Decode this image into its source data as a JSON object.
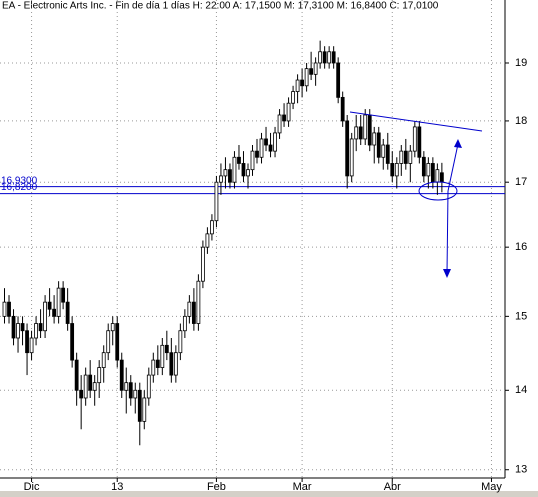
{
  "chart_data": {
    "type": "candlestick",
    "title": "EA - Electronic Arts Inc.  - Fin de día 1 días H: 22:00 A: 17,1500 M: 17,3100 M: 16,8400 C: 17,0100",
    "log_scale": true,
    "grid": true,
    "color": "#000000",
    "ylim": [
      12.9,
      20.15
    ],
    "yticks": [
      13,
      14,
      15,
      16,
      17,
      18,
      19
    ],
    "xlim": [
      -1,
      111
    ],
    "xticks": [
      {
        "value": 6,
        "label": "Dic"
      },
      {
        "value": 25,
        "label": "13"
      },
      {
        "value": 47,
        "label": "Feb"
      },
      {
        "value": 66,
        "label": "Mar"
      },
      {
        "value": 86,
        "label": "Abr"
      },
      {
        "value": 108,
        "label": "May"
      }
    ],
    "x": [
      0,
      1,
      2,
      3,
      4,
      5,
      6,
      7,
      8,
      9,
      10,
      11,
      12,
      13,
      14,
      15,
      16,
      17,
      18,
      19,
      20,
      21,
      22,
      23,
      24,
      25,
      26,
      27,
      28,
      29,
      30,
      31,
      32,
      33,
      34,
      35,
      36,
      37,
      38,
      39,
      40,
      41,
      42,
      43,
      44,
      45,
      46,
      47,
      48,
      49,
      50,
      51,
      52,
      53,
      54,
      55,
      56,
      57,
      58,
      59,
      60,
      61,
      62,
      63,
      64,
      65,
      66,
      67,
      68,
      69,
      70,
      71,
      72,
      73,
      74,
      75,
      76,
      77,
      78,
      79,
      80,
      81,
      82,
      83,
      84,
      85,
      86,
      87,
      88,
      89,
      90,
      91,
      92,
      93,
      94,
      95,
      96,
      97
    ],
    "open": [
      15.0,
      15.2,
      15.0,
      14.7,
      14.9,
      14.8,
      14.5,
      14.7,
      14.9,
      14.8,
      15.2,
      15.1,
      15.0,
      15.4,
      15.2,
      14.9,
      14.4,
      14.0,
      13.9,
      14.2,
      14.0,
      14.1,
      14.3,
      14.5,
      14.8,
      14.9,
      14.4,
      14.0,
      14.1,
      13.9,
      14.0,
      13.6,
      13.9,
      14.2,
      14.4,
      14.3,
      14.6,
      14.5,
      14.2,
      14.5,
      14.8,
      15.0,
      15.2,
      14.9,
      15.5,
      16.0,
      16.2,
      16.4,
      17.0,
      17.1,
      17.2,
      17.0,
      17.4,
      17.3,
      17.1,
      17.2,
      17.5,
      17.4,
      17.7,
      17.6,
      17.5,
      17.8,
      18.1,
      18.0,
      18.3,
      18.5,
      18.7,
      18.6,
      18.9,
      18.8,
      19.0,
      19.2,
      19.0,
      19.2,
      19.0,
      18.4,
      18.0,
      17.1,
      17.7,
      17.9,
      17.7,
      18.1,
      17.6,
      17.8,
      17.4,
      17.6,
      17.3,
      17.1,
      17.3,
      17.5,
      17.3,
      17.5,
      17.9,
      17.4,
      17.1,
      17.3,
      17.0,
      17.15
    ],
    "high": [
      15.4,
      15.3,
      15.1,
      15.0,
      15.0,
      14.9,
      14.8,
      15.0,
      15.1,
      15.3,
      15.4,
      15.3,
      15.5,
      15.5,
      15.4,
      15.0,
      14.5,
      14.2,
      14.3,
      14.4,
      14.2,
      14.4,
      14.6,
      14.9,
      15.0,
      15.0,
      14.5,
      14.3,
      14.2,
      14.1,
      14.1,
      14.0,
      14.3,
      14.5,
      14.6,
      14.7,
      14.8,
      14.7,
      14.6,
      14.9,
      15.1,
      15.3,
      15.4,
      15.6,
      16.1,
      16.3,
      16.5,
      17.1,
      17.3,
      17.4,
      17.3,
      17.5,
      17.6,
      17.5,
      17.3,
      17.6,
      17.7,
      17.8,
      17.9,
      17.8,
      17.9,
      18.2,
      18.3,
      18.4,
      18.6,
      18.8,
      18.9,
      19.0,
      19.2,
      19.1,
      19.4,
      19.3,
      19.3,
      19.3,
      19.1,
      18.5,
      18.1,
      17.8,
      18.1,
      18.1,
      18.2,
      18.2,
      17.9,
      17.9,
      17.7,
      17.8,
      17.5,
      17.4,
      17.6,
      17.7,
      17.6,
      18.0,
      18.0,
      17.5,
      17.4,
      17.4,
      17.3,
      17.31
    ],
    "low": [
      14.9,
      14.9,
      14.6,
      14.5,
      14.6,
      14.2,
      14.4,
      14.6,
      14.7,
      14.7,
      15.0,
      14.9,
      14.9,
      15.1,
      14.8,
      14.3,
      13.8,
      13.5,
      13.8,
      13.9,
      13.8,
      13.9,
      14.1,
      14.4,
      14.6,
      14.3,
      13.9,
      13.7,
      13.8,
      13.7,
      13.3,
      13.5,
      13.8,
      14.1,
      14.2,
      14.2,
      14.4,
      14.1,
      14.1,
      14.4,
      14.7,
      14.9,
      14.8,
      14.8,
      15.4,
      15.9,
      16.1,
      16.3,
      16.8,
      16.9,
      16.9,
      16.9,
      17.2,
      17.0,
      16.9,
      17.1,
      17.3,
      17.3,
      17.5,
      17.4,
      17.4,
      17.7,
      17.9,
      17.9,
      18.2,
      18.3,
      18.4,
      18.5,
      18.7,
      18.6,
      18.9,
      18.9,
      18.9,
      18.9,
      18.3,
      17.9,
      16.9,
      17.0,
      17.5,
      17.6,
      17.6,
      17.5,
      17.3,
      17.3,
      17.2,
      17.2,
      17.0,
      16.9,
      17.1,
      17.2,
      17.0,
      17.4,
      17.3,
      17.0,
      16.9,
      16.9,
      16.8,
      16.84
    ],
    "close": [
      15.2,
      15.0,
      14.7,
      14.9,
      14.8,
      14.5,
      14.7,
      14.9,
      14.8,
      15.2,
      15.1,
      15.0,
      15.4,
      15.2,
      14.9,
      14.4,
      14.0,
      13.9,
      14.2,
      14.0,
      14.1,
      14.3,
      14.5,
      14.8,
      14.9,
      14.4,
      14.0,
      14.1,
      13.9,
      14.0,
      13.6,
      13.9,
      14.2,
      14.4,
      14.3,
      14.6,
      14.5,
      14.2,
      14.5,
      14.8,
      15.0,
      15.2,
      14.9,
      15.5,
      16.0,
      16.2,
      16.4,
      17.0,
      17.1,
      17.2,
      17.0,
      17.4,
      17.3,
      17.1,
      17.2,
      17.5,
      17.4,
      17.7,
      17.6,
      17.5,
      17.8,
      18.1,
      18.0,
      18.3,
      18.5,
      18.7,
      18.6,
      18.9,
      18.8,
      19.0,
      19.2,
      19.0,
      19.2,
      19.0,
      18.4,
      18.0,
      17.1,
      17.7,
      17.9,
      17.7,
      18.1,
      17.6,
      17.8,
      17.4,
      17.6,
      17.3,
      17.1,
      17.3,
      17.5,
      17.3,
      17.5,
      17.9,
      17.4,
      17.1,
      17.3,
      17.0,
      17.2,
      17.01
    ],
    "hlines": [
      {
        "value": 16.93,
        "label": "16,9300",
        "color": "#0000cc"
      },
      {
        "value": 16.82,
        "label": "16,8200",
        "color": "#0000cc"
      }
    ]
  }
}
